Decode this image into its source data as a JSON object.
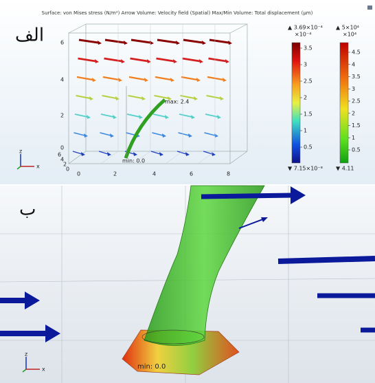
{
  "header": {
    "caption": "Surface: von Mises stress (N/m²)  Arrow Volume: Velocity field (Spatial)  Max/Min Volume: Total displacement (μm)"
  },
  "panel_a": {
    "label": "الف",
    "max_label": "max: 2.4",
    "min_label": "min: 0.0",
    "z_ticks": [
      "0",
      "2",
      "4",
      "6"
    ],
    "y_ticks": [
      "6",
      "4",
      "2",
      "0"
    ],
    "x_ticks": [
      "0",
      "2",
      "4",
      "6",
      "8"
    ],
    "triad": [
      "z",
      "x"
    ],
    "colorbars": [
      {
        "max": "▲ 3.69×10⁻⁴",
        "multiplier": "×10⁻⁴",
        "ticks": [
          "3.5",
          "3",
          "2.5",
          "2",
          "1.5",
          "1",
          "0.5"
        ],
        "min": "▼ 7.15×10⁻⁸"
      },
      {
        "max": "▲ 5×10⁴",
        "multiplier": "×10⁴",
        "ticks": [
          "4.5",
          "4",
          "3.5",
          "3",
          "2.5",
          "2",
          "1.5",
          "1",
          "0.5"
        ],
        "min": "▼ 4.11"
      }
    ]
  },
  "panel_b": {
    "label": "ب",
    "min_label": "min: 0.0",
    "triad": [
      "z",
      "x"
    ]
  }
}
